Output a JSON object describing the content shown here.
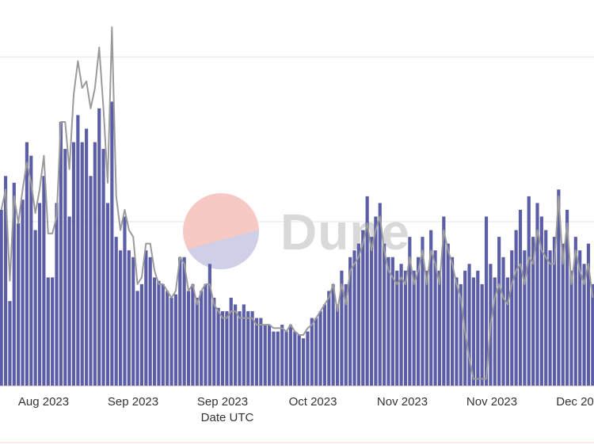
{
  "chart_data": {
    "type": "bar",
    "xlabel": "Date UTC",
    "x_tick_labels": [
      "Aug 2023",
      "Sep 2023",
      "Sep 2023",
      "Oct 2023",
      "Nov 2023",
      "Nov 2023",
      "Dec 20"
    ],
    "ylim": [
      0,
      100
    ],
    "grid": true,
    "watermark": "Dune",
    "colors": {
      "bars": "#5b5ea6",
      "line": "#9b9b9b",
      "grid": "#e6e6e6",
      "watermark_top": "#f7c9c4",
      "watermark_bottom": "#cfd0e8"
    },
    "series": [
      {
        "type": "bar",
        "values": [
          52,
          62,
          25,
          60,
          48,
          55,
          72,
          68,
          46,
          54,
          62,
          32,
          32,
          54,
          78,
          70,
          50,
          72,
          80,
          72,
          76,
          62,
          72,
          82,
          70,
          54,
          84,
          44,
          40,
          50,
          40,
          38,
          28,
          30,
          40,
          38,
          32,
          31,
          30,
          28,
          26,
          27,
          38,
          38,
          28,
          30,
          26,
          28,
          30,
          36,
          26,
          23,
          22,
          22,
          26,
          24,
          22,
          24,
          22,
          22,
          20,
          20,
          18,
          18,
          16,
          16,
          18,
          16,
          18,
          16,
          15,
          14,
          16,
          20,
          20,
          22,
          24,
          28,
          30,
          24,
          34,
          30,
          38,
          40,
          42,
          46,
          56,
          44,
          50,
          54,
          42,
          38,
          38,
          34,
          36,
          34,
          44,
          34,
          38,
          44,
          34,
          46,
          40,
          34,
          50,
          42,
          38,
          32,
          30,
          34,
          36,
          32,
          34,
          30,
          50,
          36,
          32,
          44,
          38,
          32,
          40,
          46,
          52,
          40,
          56,
          44,
          54,
          50,
          46,
          40,
          44,
          58,
          42,
          52,
          34,
          44,
          40,
          36,
          42,
          30
        ]
      },
      {
        "type": "line",
        "values": [
          52,
          58,
          31,
          56,
          48,
          58,
          66,
          60,
          51,
          58,
          68,
          45,
          45,
          50,
          78,
          78,
          64,
          86,
          96,
          88,
          90,
          82,
          88,
          100,
          82,
          60,
          106,
          56,
          46,
          52,
          46,
          44,
          30,
          32,
          42,
          42,
          34,
          30,
          30,
          28,
          26,
          28,
          38,
          36,
          28,
          30,
          24,
          28,
          30,
          30,
          24,
          22,
          20,
          20,
          22,
          22,
          20,
          20,
          20,
          20,
          18,
          18,
          18,
          18,
          17,
          17,
          17,
          16,
          18,
          16,
          15,
          15,
          17,
          18,
          20,
          22,
          24,
          26,
          30,
          22,
          30,
          24,
          34,
          36,
          38,
          42,
          48,
          40,
          46,
          50,
          40,
          34,
          32,
          30,
          32,
          30,
          38,
          30,
          34,
          40,
          30,
          40,
          36,
          30,
          46,
          40,
          36,
          30,
          26,
          16,
          8,
          2,
          2,
          2,
          2,
          18,
          26,
          30,
          26,
          24,
          30,
          34,
          36,
          30,
          38,
          36,
          46,
          40,
          38,
          36,
          36,
          56,
          36,
          48,
          30,
          40,
          34,
          30,
          36,
          26
        ]
      }
    ]
  }
}
